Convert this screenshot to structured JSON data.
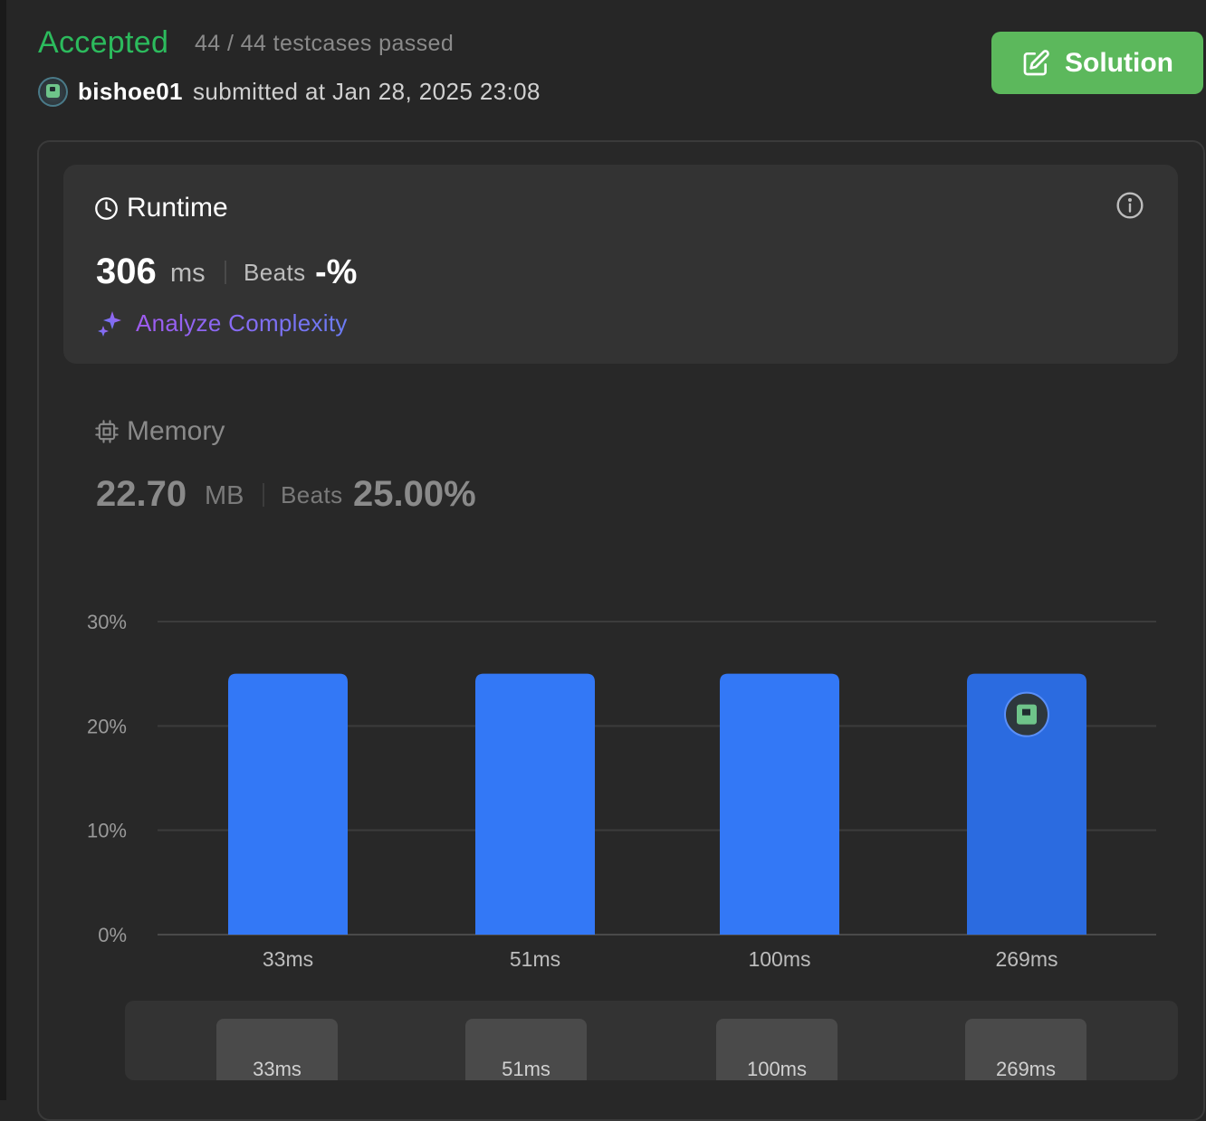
{
  "header": {
    "status": "Accepted",
    "testcases": "44 / 44 testcases passed",
    "username": "bishoe01",
    "submitted": "submitted at Jan 28, 2025 23:08",
    "solution_label": "Solution"
  },
  "runtime": {
    "title": "Runtime",
    "value": "306",
    "unit": "ms",
    "beats_label": "Beats",
    "beats_value": "-%",
    "analyze_label": "Analyze Complexity"
  },
  "memory": {
    "title": "Memory",
    "value": "22.70",
    "unit": "MB",
    "beats_label": "Beats",
    "beats_value": "25.00%"
  },
  "colors": {
    "accepted": "#2cbb5d",
    "solution_button": "#5cb85c",
    "bar": "#3378f6",
    "bar_selected": "#2b6be0"
  },
  "icons": {
    "runtime": "clock-icon",
    "info": "info-icon",
    "analyze": "sparkle-icon",
    "memory": "chip-icon",
    "solution": "edit-icon"
  },
  "chart_data": {
    "type": "bar",
    "categories": [
      "33ms",
      "51ms",
      "100ms",
      "269ms"
    ],
    "values": [
      25,
      25,
      25,
      25
    ],
    "ylim": [
      0,
      30
    ],
    "yticks": [
      "0%",
      "10%",
      "20%",
      "30%"
    ],
    "ytick_values": [
      0,
      10,
      20,
      30
    ],
    "grid": true,
    "highlight_category": "269ms"
  },
  "scrubber": {
    "labels": [
      "33ms",
      "51ms",
      "100ms",
      "269ms"
    ]
  }
}
